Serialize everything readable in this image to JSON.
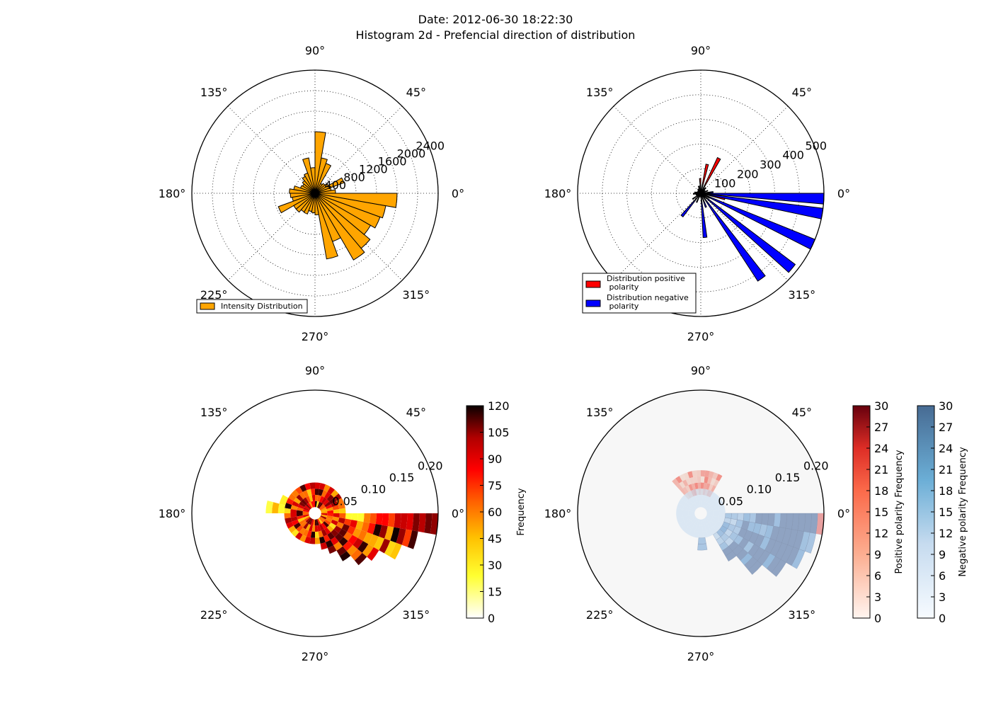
{
  "figure": {
    "title_line1": "Date: 2012-06-30 18:22:30",
    "title_line2": "Histogram 2d - Prefencial direction of distribution"
  },
  "angle_labels": [
    "0°",
    "45°",
    "90°",
    "135°",
    "180°",
    "225°",
    "270°",
    "315°"
  ],
  "colors": {
    "orange": "#ffa500",
    "red": "#ff0000",
    "blue": "#0000ff",
    "neg_bins": "#8fa3c2",
    "panel4_bg": "#f7f7f7"
  },
  "chart_data": [
    {
      "type": "bar",
      "subtype": "polar",
      "rlim": [
        0,
        2400
      ],
      "r_ticks": [
        "400",
        "800",
        "1200",
        "1600",
        "2000",
        "2400"
      ],
      "theta_bin_width_deg": 10,
      "series": [
        {
          "name": "Intensity Distribution",
          "color": "#ffa500",
          "theta_deg": [
            0,
            10,
            20,
            30,
            40,
            50,
            60,
            70,
            80,
            90,
            100,
            110,
            120,
            130,
            140,
            150,
            160,
            170,
            180,
            190,
            200,
            210,
            220,
            230,
            240,
            250,
            260,
            270,
            280,
            290,
            300,
            310,
            320,
            330,
            340,
            350
          ],
          "values": [
            400,
            320,
            600,
            300,
            250,
            220,
            620,
            700,
            1200,
            500,
            700,
            420,
            380,
            320,
            280,
            300,
            420,
            500,
            480,
            450,
            760,
            480,
            480,
            420,
            430,
            360,
            380,
            420,
            1300,
            1000,
            1500,
            1400,
            1250,
            1350,
            1400,
            1600
          ]
        }
      ]
    },
    {
      "type": "bar",
      "subtype": "polar",
      "rlim": [
        0,
        500
      ],
      "r_ticks": [
        "100",
        "200",
        "300",
        "400",
        "500"
      ],
      "theta_bin_width_deg": 5,
      "series": [
        {
          "name": "Distribution positive\npolarity",
          "color": "#ff0000",
          "theta_deg": [
            0,
            15,
            30,
            45,
            60,
            75,
            90,
            105,
            120,
            135,
            150,
            165,
            180,
            195,
            210,
            225,
            240,
            255,
            270,
            285,
            300,
            315,
            330,
            345
          ],
          "values": [
            20,
            15,
            15,
            30,
            160,
            120,
            60,
            30,
            20,
            15,
            12,
            20,
            30,
            20,
            15,
            15,
            12,
            10,
            10,
            12,
            15,
            25,
            40,
            100
          ]
        },
        {
          "name": "Distribution negative\npolarity",
          "color": "#0000ff",
          "theta_deg": [
            3,
            18,
            33,
            48,
            63,
            78,
            93,
            108,
            123,
            138,
            153,
            168,
            183,
            198,
            213,
            228,
            243,
            258,
            273,
            288,
            303,
            318,
            333,
            348,
            355
          ],
          "values": [
            50,
            30,
            20,
            25,
            15,
            10,
            30,
            15,
            20,
            10,
            15,
            25,
            30,
            20,
            40,
            120,
            40,
            15,
            180,
            60,
            425,
            480,
            500,
            520,
            500
          ]
        }
      ]
    },
    {
      "type": "heatmap",
      "subtype": "polar",
      "rlim": [
        0,
        0.2
      ],
      "r_ticks": [
        "0.05",
        "0.10",
        "0.15",
        "0.20"
      ],
      "colorbar": {
        "label": "Frequency",
        "ticks": [
          "0",
          "15",
          "30",
          "45",
          "60",
          "75",
          "90",
          "105",
          "120"
        ],
        "range": [
          0,
          120
        ],
        "cmap": "hot_r"
      }
    },
    {
      "type": "heatmap",
      "subtype": "polar",
      "rlim": [
        0,
        0.2
      ],
      "r_ticks": [
        "0.05",
        "0.10",
        "0.15",
        "0.20"
      ],
      "colorbars": [
        {
          "label": "Positive polarity Frequency",
          "ticks": [
            "0",
            "3",
            "6",
            "9",
            "12",
            "15",
            "18",
            "21",
            "24",
            "27",
            "30"
          ],
          "range": [
            0,
            30
          ],
          "cmap": "Reds"
        },
        {
          "label": "Negative polarity Frequency",
          "ticks": [
            "0",
            "3",
            "6",
            "9",
            "12",
            "15",
            "18",
            "21",
            "24",
            "27",
            "30"
          ],
          "range": [
            0,
            30
          ],
          "cmap": "Blues"
        }
      ]
    }
  ]
}
